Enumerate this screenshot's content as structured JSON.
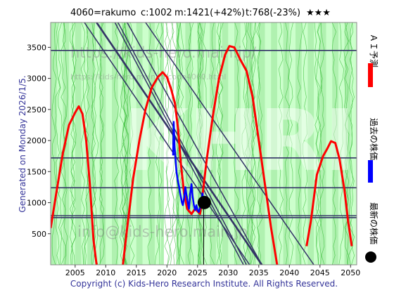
{
  "header": {
    "ticker": "4060=rakumo",
    "current": "c:1002",
    "max_info": "m:1421(+42%)",
    "target_info": "t:768(-23%)",
    "rating": "★★★"
  },
  "side_left": "Generated on Monday 2026/1/5.",
  "footer": "Copyright (c) Kids-Hero Research Institute. All Rights Reserved.",
  "legend": [
    {
      "label": "ＡＩ予測",
      "color": "#ff0000"
    },
    {
      "label": "過去の株価",
      "color": "#0000ff"
    },
    {
      "label": "最新の株価",
      "color": "#000000"
    }
  ],
  "watermarks": [
    "https://kids-hero.main.jp/",
    "https://kids-hero.main.jp/code4060.html",
    "info@kids-hero.main.jp"
  ],
  "colors": {
    "bg_light": "#ccffcc",
    "bg_dark": "#99e699",
    "thin_green": "#33bb33",
    "line_navy": "#333366",
    "ai_red": "#ff0000",
    "past_blue": "#0000ff"
  },
  "chart_data": {
    "type": "line",
    "xlim": [
      2001,
      2051
    ],
    "ylim": [
      0,
      3900
    ],
    "x_ticks": [
      2005,
      2010,
      2015,
      2020,
      2025,
      2030,
      2035,
      2040,
      2045,
      2050
    ],
    "y_ticks": [
      500,
      1000,
      1500,
      2000,
      2500,
      3000,
      3500
    ],
    "horizontal_levels": [
      3450,
      1720,
      1240,
      790,
      760
    ],
    "diagonal_lines": [
      {
        "x1": 2006.5,
        "y1": 3900,
        "x2": 2033.5,
        "y2": 0
      },
      {
        "x1": 2008.5,
        "y1": 3900,
        "x2": 2035.5,
        "y2": 0
      },
      {
        "x1": 2011.5,
        "y1": 3900,
        "x2": 2032.5,
        "y2": 0
      },
      {
        "x1": 2012.0,
        "y1": 3900,
        "x2": 2033.0,
        "y2": 0
      },
      {
        "x1": 2013.5,
        "y1": 3900,
        "x2": 2035.5,
        "y2": 0
      },
      {
        "x1": 2016.5,
        "y1": 3900,
        "x2": 2044.0,
        "y2": 0
      }
    ],
    "highlight_band": {
      "x_from": 2019.5,
      "x_to": 2021.5
    },
    "vertical_marker_x": 2026.0,
    "latest_point": {
      "x": 2026.1,
      "y": 1002
    },
    "series": [
      {
        "name": "ＡＩ予測",
        "color": "#ff0000",
        "segments": [
          [
            [
              2001,
              590
            ],
            [
              2002,
              1200
            ],
            [
              2003,
              1800
            ],
            [
              2004,
              2250
            ],
            [
              2005,
              2450
            ],
            [
              2005.6,
              2550
            ],
            [
              2006.2,
              2430
            ],
            [
              2006.8,
              2000
            ],
            [
              2007.4,
              1300
            ],
            [
              2008,
              400
            ],
            [
              2008.5,
              0
            ]
          ],
          [
            [
              2012.8,
              0
            ],
            [
              2013.5,
              600
            ],
            [
              2014.5,
              1400
            ],
            [
              2015.5,
              2000
            ],
            [
              2016.5,
              2500
            ],
            [
              2017.5,
              2850
            ],
            [
              2018.5,
              3020
            ],
            [
              2019.3,
              3100
            ],
            [
              2020,
              3020
            ],
            [
              2020.7,
              2820
            ],
            [
              2021.3,
              2600
            ],
            [
              2021.8,
              2200
            ],
            [
              2022.3,
              1600
            ],
            [
              2022.8,
              1150
            ],
            [
              2023.3,
              900
            ],
            [
              2024,
              820
            ],
            [
              2024.6,
              900
            ],
            [
              2025.4,
              820
            ],
            [
              2025.8,
              1120
            ],
            [
              2026.5,
              1700
            ],
            [
              2027.5,
              2400
            ],
            [
              2028.5,
              3000
            ],
            [
              2029.5,
              3380
            ],
            [
              2030.2,
              3520
            ],
            [
              2031,
              3500
            ],
            [
              2032,
              3300
            ],
            [
              2033,
              3120
            ],
            [
              2034,
              2700
            ],
            [
              2035,
              2000
            ],
            [
              2036,
              1300
            ],
            [
              2037,
              600
            ],
            [
              2038,
              0
            ]
          ],
          [
            [
              2042.8,
              300
            ],
            [
              2043.5,
              700
            ],
            [
              2044.5,
              1450
            ],
            [
              2045.5,
              1750
            ],
            [
              2046.2,
              1870
            ],
            [
              2046.8,
              1990
            ],
            [
              2047.5,
              1960
            ],
            [
              2048.2,
              1700
            ],
            [
              2049,
              1200
            ],
            [
              2049.6,
              700
            ],
            [
              2050.2,
              300
            ]
          ]
        ]
      },
      {
        "name": "過去の株価",
        "color": "#0000ff",
        "points": [
          [
            2021.0,
            1760
          ],
          [
            2021.1,
            2300
          ],
          [
            2021.25,
            1900
          ],
          [
            2021.4,
            1700
          ],
          [
            2021.55,
            1500
          ],
          [
            2021.7,
            1400
          ],
          [
            2021.85,
            1320
          ],
          [
            2022.0,
            1250
          ],
          [
            2022.15,
            1150
          ],
          [
            2022.3,
            1080
          ],
          [
            2022.45,
            1000
          ],
          [
            2022.6,
            960
          ],
          [
            2022.8,
            1080
          ],
          [
            2023.0,
            1250
          ],
          [
            2023.2,
            1120
          ],
          [
            2023.4,
            1000
          ],
          [
            2023.6,
            900
          ],
          [
            2023.8,
            1150
          ],
          [
            2024.0,
            1300
          ],
          [
            2024.2,
            1100
          ],
          [
            2024.4,
            960
          ],
          [
            2024.6,
            880
          ],
          [
            2024.8,
            960
          ],
          [
            2025.0,
            880
          ],
          [
            2025.2,
            850
          ],
          [
            2025.4,
            920
          ],
          [
            2025.6,
            1020
          ],
          [
            2025.8,
            1150
          ],
          [
            2026.0,
            1002
          ]
        ]
      }
    ]
  }
}
